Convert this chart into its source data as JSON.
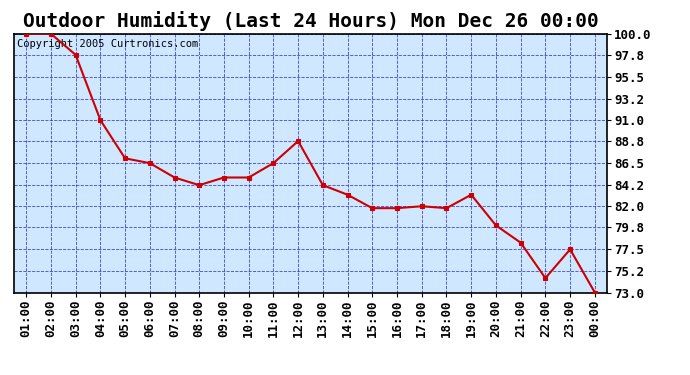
{
  "title": "Outdoor Humidity (Last 24 Hours) Mon Dec 26 00:00",
  "copyright": "Copyright 2005 Curtronics.com",
  "x_labels": [
    "01:00",
    "02:00",
    "03:00",
    "04:00",
    "05:00",
    "06:00",
    "07:00",
    "08:00",
    "09:00",
    "10:00",
    "11:00",
    "12:00",
    "13:00",
    "14:00",
    "15:00",
    "16:00",
    "17:00",
    "18:00",
    "19:00",
    "20:00",
    "21:00",
    "22:00",
    "23:00",
    "00:00"
  ],
  "y_values": [
    100.0,
    100.0,
    97.8,
    91.0,
    87.0,
    86.5,
    85.0,
    84.2,
    85.0,
    85.0,
    86.5,
    88.8,
    84.2,
    83.2,
    81.8,
    81.8,
    82.0,
    81.8,
    83.2,
    80.0,
    78.2,
    74.5,
    77.5,
    73.0
  ],
  "line_color": "#cc0000",
  "marker_color": "#cc0000",
  "bg_color": "#ffffff",
  "plot_bg_color": "#d0e8ff",
  "grid_color": "#3333cc",
  "border_color": "#000000",
  "ylim_min": 73.0,
  "ylim_max": 100.0,
  "ytick_values": [
    73.0,
    75.2,
    77.5,
    79.8,
    82.0,
    84.2,
    86.5,
    88.8,
    91.0,
    93.2,
    95.5,
    97.8,
    100.0
  ],
  "title_fontsize": 14,
  "label_fontsize": 9,
  "copyright_fontsize": 7.5
}
